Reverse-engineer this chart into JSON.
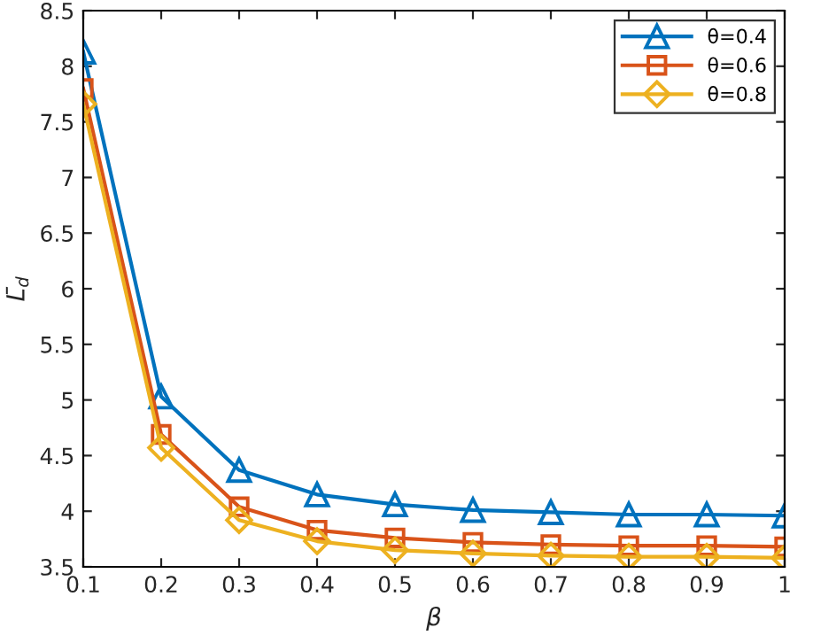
{
  "chart_data": {
    "type": "line",
    "xlabel": "β",
    "ylabel": "L̄$_{d}$",
    "x": [
      0.1,
      0.2,
      0.3,
      0.4,
      0.5,
      0.6,
      0.7,
      0.8,
      0.9,
      1
    ],
    "series": [
      {
        "name": "θ=0.4",
        "color": "#0072bd",
        "marker": "triangle",
        "values": [
          8.13,
          5.03,
          4.37,
          4.15,
          4.06,
          4.01,
          3.99,
          3.97,
          3.97,
          3.96
        ]
      },
      {
        "name": "θ=0.6",
        "color": "#d95319",
        "marker": "square",
        "values": [
          7.8,
          4.69,
          4.04,
          3.83,
          3.76,
          3.72,
          3.7,
          3.69,
          3.69,
          3.68
        ]
      },
      {
        "name": "θ=0.8",
        "color": "#edb120",
        "marker": "diamond",
        "values": [
          7.66,
          4.57,
          3.92,
          3.73,
          3.65,
          3.62,
          3.6,
          3.59,
          3.59,
          3.58
        ]
      }
    ],
    "xlim": [
      0.1,
      1
    ],
    "ylim": [
      3.5,
      8.5
    ],
    "xticks": [
      0.1,
      0.2,
      0.3,
      0.4,
      0.5,
      0.6,
      0.7,
      0.8,
      0.9,
      1
    ],
    "yticks": [
      3.5,
      4,
      4.5,
      5,
      5.5,
      6,
      6.5,
      7,
      7.5,
      8,
      8.5
    ],
    "grid": false,
    "legend": "top right",
    "line_style": "solid"
  }
}
